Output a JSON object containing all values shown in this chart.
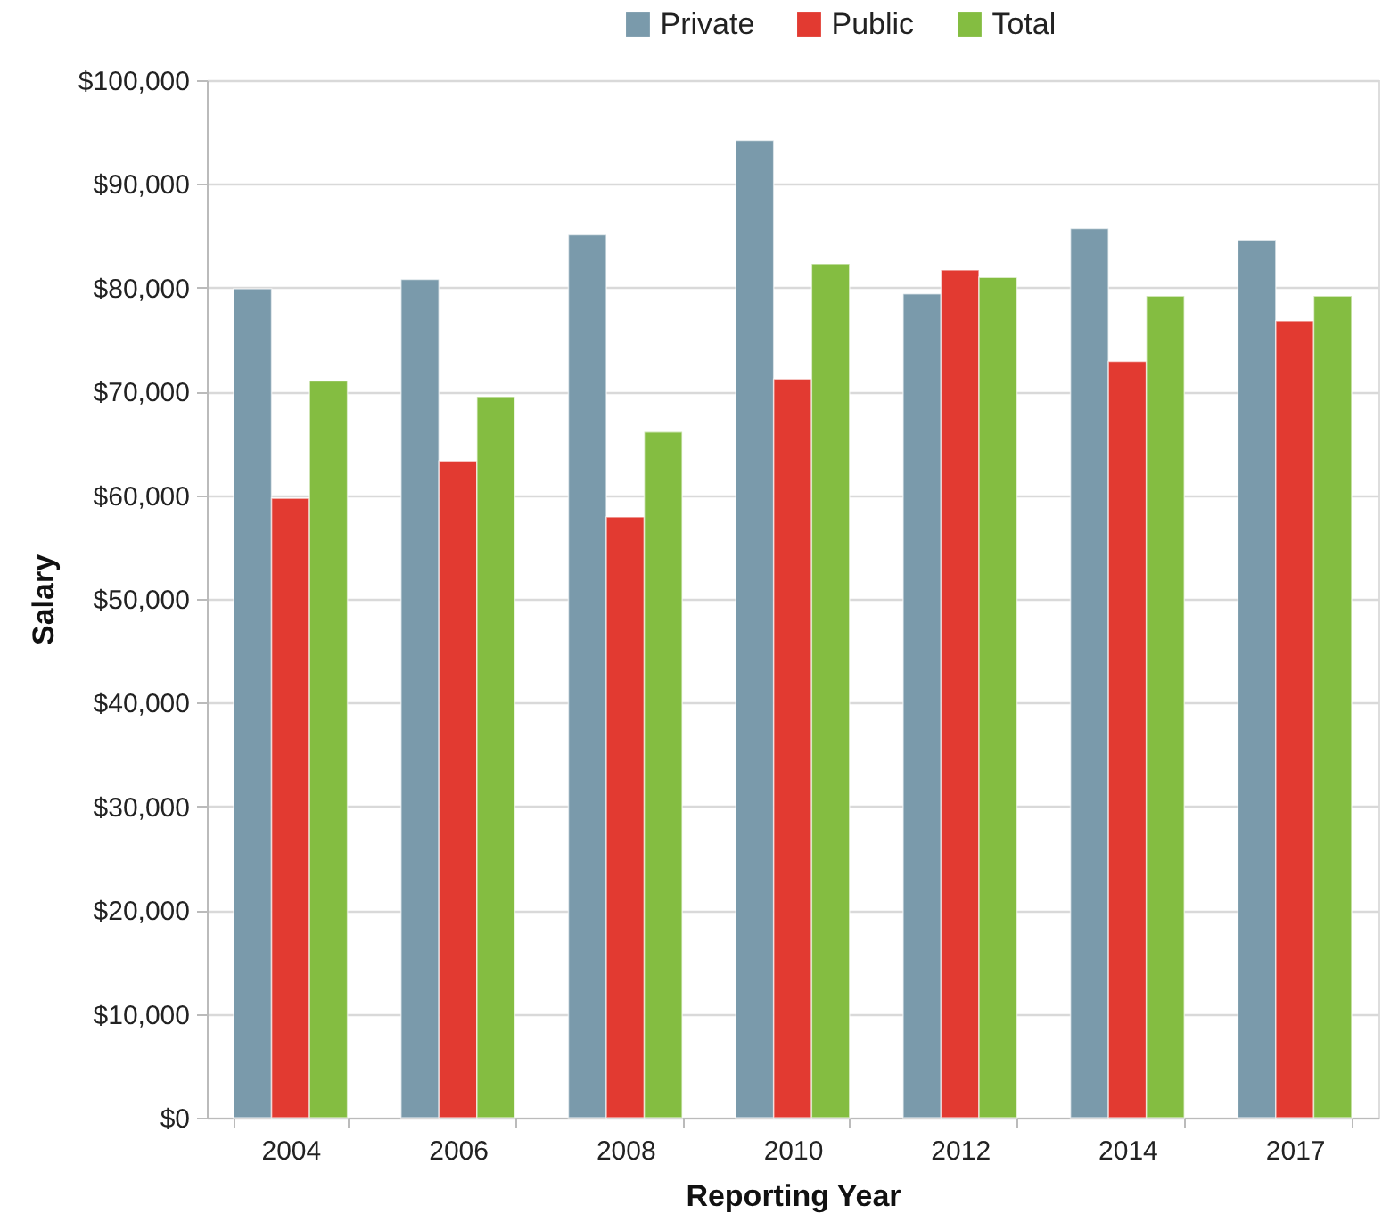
{
  "chart_data": {
    "type": "bar",
    "xlabel": "Reporting Year",
    "ylabel": "Salary",
    "categories": [
      "2004",
      "2006",
      "2008",
      "2010",
      "2012",
      "2014",
      "2017"
    ],
    "series": [
      {
        "name": "Private",
        "color": "#7a9aab",
        "values": [
          79900,
          80800,
          85100,
          94200,
          79400,
          85700,
          84600
        ]
      },
      {
        "name": "Public",
        "color": "#e23a31",
        "values": [
          59700,
          63300,
          57900,
          71200,
          81700,
          72900,
          76800
        ]
      },
      {
        "name": "Total",
        "color": "#84bd41",
        "values": [
          71000,
          69500,
          66100,
          82300,
          81000,
          79200,
          79200
        ]
      }
    ],
    "ylim": [
      0,
      100000
    ],
    "yticks": [
      {
        "value": 0,
        "label": "$0"
      },
      {
        "value": 10000,
        "label": "$10,000"
      },
      {
        "value": 20000,
        "label": "$20,000"
      },
      {
        "value": 30000,
        "label": "$30,000"
      },
      {
        "value": 40000,
        "label": "$40,000"
      },
      {
        "value": 50000,
        "label": "$50,000"
      },
      {
        "value": 60000,
        "label": "$60,000"
      },
      {
        "value": 70000,
        "label": "$70,000"
      },
      {
        "value": 80000,
        "label": "$80,000"
      },
      {
        "value": 90000,
        "label": "$90,000"
      },
      {
        "value": 100000,
        "label": "$100,000"
      }
    ],
    "grid": "y",
    "legend": "top"
  }
}
